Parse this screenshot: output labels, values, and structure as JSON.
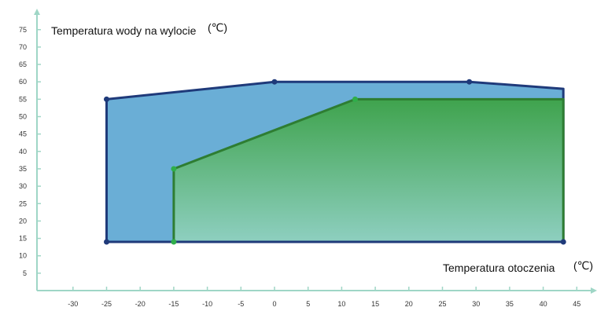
{
  "chart_data": {
    "type": "area",
    "xlabel": "Temperatura otoczenia",
    "xunit": "(℃)",
    "ylabel": "Temperatura wody na wylocie",
    "yunit": "(℃)",
    "xlim": [
      -34,
      46
    ],
    "ylim": [
      0,
      80
    ],
    "xticks": [
      -30,
      -25,
      -20,
      -15,
      -10,
      -5,
      0,
      5,
      10,
      15,
      20,
      25,
      30,
      35,
      40,
      45
    ],
    "yticks": [
      5,
      10,
      15,
      20,
      25,
      30,
      35,
      40,
      45,
      50,
      55,
      60,
      65,
      70,
      75
    ],
    "grid": false,
    "legend": "none",
    "series": [
      {
        "color": "#1f3a7a",
        "fill_color": "#6aaed6",
        "points": [
          {
            "x": -25,
            "y": 14
          },
          {
            "x": -25,
            "y": 55
          },
          {
            "x": 0,
            "y": 60
          },
          {
            "x": 29,
            "y": 60
          },
          {
            "x": 43,
            "y": 58
          },
          {
            "x": 43,
            "y": 14
          }
        ],
        "markers": [
          {
            "x": -25,
            "y": 14
          },
          {
            "x": -25,
            "y": 55
          },
          {
            "x": 0,
            "y": 60
          },
          {
            "x": 29,
            "y": 60
          },
          {
            "x": 43,
            "y": 14
          }
        ]
      },
      {
        "color": "#2e7d32",
        "fill_top_color": "#3fa34d",
        "fill_bottom_color": "#8ecfc0",
        "points": [
          {
            "x": -15,
            "y": 14
          },
          {
            "x": -15,
            "y": 35
          },
          {
            "x": 12,
            "y": 55
          },
          {
            "x": 43,
            "y": 55
          },
          {
            "x": 43,
            "y": 14
          }
        ],
        "markers": [
          {
            "x": -15,
            "y": 14
          },
          {
            "x": -15,
            "y": 35
          },
          {
            "x": 12,
            "y": 55
          }
        ]
      }
    ],
    "axis_color": "#9fd6c6"
  }
}
